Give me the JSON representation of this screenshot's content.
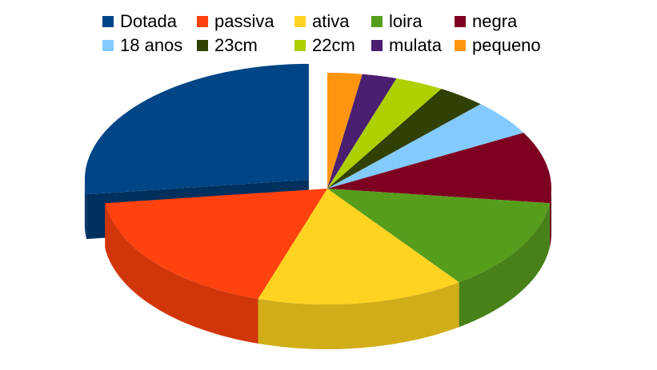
{
  "chart_data": {
    "type": "pie",
    "variant": "3d-exploded",
    "title": "",
    "legend_position": "top",
    "slices": [
      {
        "label": "Dotada",
        "value": 27,
        "color": "#004586"
      },
      {
        "label": "passiva",
        "value": 18,
        "color": "#FF420E"
      },
      {
        "label": "ativa",
        "value": 15,
        "color": "#FFD320"
      },
      {
        "label": "loira",
        "value": 13,
        "color": "#579D1C"
      },
      {
        "label": "negra",
        "value": 10,
        "color": "#7E0021"
      },
      {
        "label": "18 anos",
        "value": 5,
        "color": "#83CAFF"
      },
      {
        "label": "23cm",
        "value": 3.5,
        "color": "#314004"
      },
      {
        "label": "22cm",
        "value": 3.5,
        "color": "#AECF00"
      },
      {
        "label": "mulata",
        "value": 2.5,
        "color": "#4B1F6F"
      },
      {
        "label": "pequeno",
        "value": 2.5,
        "color": "#FF950E"
      }
    ]
  }
}
